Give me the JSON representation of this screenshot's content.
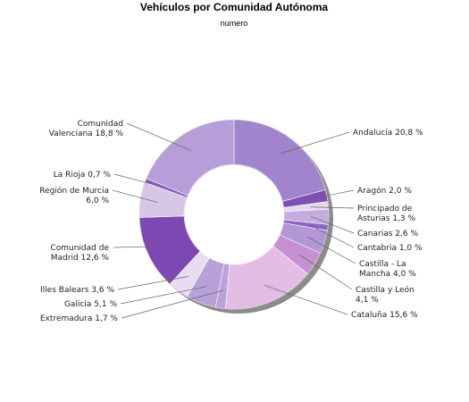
{
  "chart_data": {
    "type": "pie",
    "title": "Vehículos por Comunidad Autónoma",
    "subtitle": "numero",
    "slices": [
      {
        "label": "Andalucía 20,8 %",
        "name": "Andalucía",
        "value": 20.8,
        "color": "#a184cc"
      },
      {
        "label": "Aragón 2,0 %",
        "name": "Aragón",
        "value": 2.0,
        "color": "#7e4fb5"
      },
      {
        "label": "Principado de Asturias 1,3 %",
        "name": "Principado de Asturias",
        "value": 1.3,
        "color": "#e6d8f0"
      },
      {
        "label": "Canarias 2,6 %",
        "name": "Canarias",
        "value": 2.6,
        "color": "#c3addf"
      },
      {
        "label": "Cantabria 1,0 %",
        "name": "Cantabria",
        "value": 1.0,
        "color": "#8f63c3"
      },
      {
        "label": "Castilla - La Mancha 4,0 %",
        "name": "Castilla - La Mancha",
        "value": 4.0,
        "color": "#b296d6"
      },
      {
        "label": "Castilla y León 4,1 %",
        "name": "Castilla y León",
        "value": 4.1,
        "color": "#c690d2"
      },
      {
        "label": "Cataluña 15,6 %",
        "name": "Cataluña",
        "value": 15.6,
        "color": "#e4bde4"
      },
      {
        "label": "Extremadura 1,7 %",
        "name": "Extremadura",
        "value": 1.7,
        "color": "#bca2db"
      },
      {
        "label": "Galicia 5,1 %",
        "name": "Galicia",
        "value": 5.1,
        "color": "#b9a0d8"
      },
      {
        "label": "Illes Balears 3,6 %",
        "name": "Illes Balears",
        "value": 3.6,
        "color": "#e8dcf2"
      },
      {
        "label": "Comunidad de Madrid 12,6 %",
        "name": "Comunidad de Madrid",
        "value": 12.6,
        "color": "#7d48b1"
      },
      {
        "label": "Región de Murcia 6,0 %",
        "name": "Región de Murcia",
        "value": 6.0,
        "color": "#d8c6e8"
      },
      {
        "label": "La Rioja 0,7 %",
        "name": "La Rioja",
        "value": 0.7,
        "color": "#8a5ac0"
      },
      {
        "label": "Comunidad Valenciana 18,8 %",
        "name": "Comunidad Valenciana",
        "value": 18.8,
        "color": "#b79ed8"
      }
    ]
  }
}
